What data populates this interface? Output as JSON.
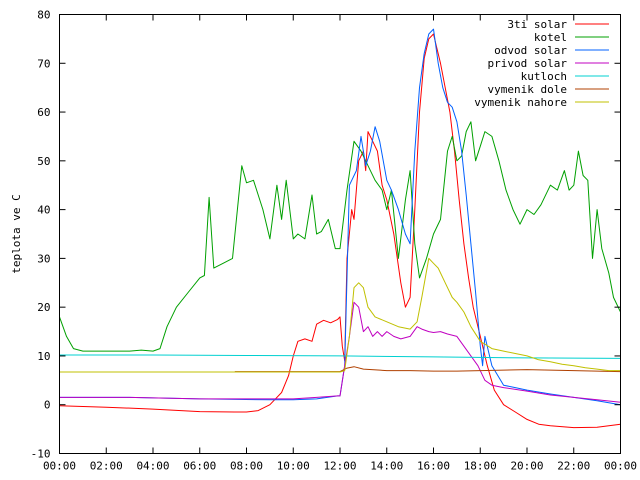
{
  "chart_data": {
    "type": "line",
    "xlabel": "",
    "ylabel": "teplota ve C",
    "xlim": [
      0,
      24
    ],
    "ylim": [
      -10,
      80
    ],
    "grid": false,
    "legend_position": "top-right",
    "x_tick_labels": [
      "00:00",
      "02:00",
      "04:00",
      "06:00",
      "08:00",
      "10:00",
      "12:00",
      "14:00",
      "16:00",
      "18:00",
      "20:00",
      "22:00",
      "00:00"
    ],
    "y_ticks": [
      -10,
      0,
      10,
      20,
      30,
      40,
      50,
      60,
      70,
      80
    ],
    "series": [
      {
        "name": "3ti solar",
        "color": "#ff0000",
        "points": [
          [
            0,
            -0.2
          ],
          [
            2,
            -0.5
          ],
          [
            4,
            -0.9
          ],
          [
            6,
            -1.4
          ],
          [
            7.5,
            -1.5
          ],
          [
            8,
            -1.5
          ],
          [
            8.5,
            -1.2
          ],
          [
            9,
            0
          ],
          [
            9.5,
            2.5
          ],
          [
            9.8,
            6
          ],
          [
            10,
            10
          ],
          [
            10.2,
            13
          ],
          [
            10.5,
            13.5
          ],
          [
            10.8,
            13
          ],
          [
            11,
            16.5
          ],
          [
            11.3,
            17.3
          ],
          [
            11.6,
            16.8
          ],
          [
            11.9,
            17.5
          ],
          [
            12,
            18
          ],
          [
            12.1,
            12
          ],
          [
            12.2,
            9
          ],
          [
            12.3,
            30
          ],
          [
            12.5,
            40
          ],
          [
            12.6,
            38
          ],
          [
            12.8,
            50
          ],
          [
            13,
            52
          ],
          [
            13.1,
            48
          ],
          [
            13.2,
            56
          ],
          [
            13.4,
            54
          ],
          [
            13.6,
            52
          ],
          [
            13.8,
            45
          ],
          [
            14,
            42
          ],
          [
            14.3,
            35
          ],
          [
            14.6,
            25
          ],
          [
            14.8,
            20
          ],
          [
            15,
            22
          ],
          [
            15.2,
            40
          ],
          [
            15.4,
            60
          ],
          [
            15.6,
            71
          ],
          [
            15.8,
            75
          ],
          [
            16,
            76
          ],
          [
            16.1,
            74
          ],
          [
            16.3,
            70
          ],
          [
            16.5,
            65
          ],
          [
            16.7,
            60
          ],
          [
            16.9,
            52
          ],
          [
            17.1,
            42
          ],
          [
            17.3,
            33
          ],
          [
            17.5,
            26
          ],
          [
            17.7,
            20
          ],
          [
            18,
            14
          ],
          [
            18.3,
            8
          ],
          [
            18.6,
            3
          ],
          [
            19,
            0
          ],
          [
            19.5,
            -1.5
          ],
          [
            20,
            -3
          ],
          [
            20.5,
            -4
          ],
          [
            21,
            -4.3
          ],
          [
            22,
            -4.7
          ],
          [
            23,
            -4.6
          ],
          [
            24,
            -4
          ]
        ]
      },
      {
        "name": "kotel",
        "color": "#00a000",
        "points": [
          [
            0,
            18
          ],
          [
            0.3,
            14
          ],
          [
            0.6,
            11.5
          ],
          [
            1,
            11
          ],
          [
            1.5,
            11
          ],
          [
            2,
            11
          ],
          [
            2.5,
            11
          ],
          [
            3,
            11
          ],
          [
            3.5,
            11.2
          ],
          [
            4,
            11
          ],
          [
            4.3,
            11.5
          ],
          [
            4.6,
            16
          ],
          [
            5,
            20
          ],
          [
            5.5,
            23
          ],
          [
            6,
            26
          ],
          [
            6.2,
            26.5
          ],
          [
            6.4,
            42.5
          ],
          [
            6.6,
            28
          ],
          [
            7,
            29
          ],
          [
            7.4,
            30
          ],
          [
            7.8,
            49
          ],
          [
            8,
            45.5
          ],
          [
            8.3,
            46
          ],
          [
            8.7,
            40
          ],
          [
            9,
            34
          ],
          [
            9.3,
            45
          ],
          [
            9.5,
            38
          ],
          [
            9.7,
            46
          ],
          [
            10,
            34
          ],
          [
            10.2,
            35
          ],
          [
            10.5,
            34
          ],
          [
            10.8,
            43
          ],
          [
            11,
            35
          ],
          [
            11.2,
            35.5
          ],
          [
            11.5,
            38
          ],
          [
            11.8,
            32
          ],
          [
            12,
            32
          ],
          [
            12.3,
            44
          ],
          [
            12.6,
            54
          ],
          [
            12.9,
            52
          ],
          [
            13.2,
            49
          ],
          [
            13.5,
            46
          ],
          [
            13.8,
            44
          ],
          [
            14,
            40
          ],
          [
            14.2,
            44
          ],
          [
            14.5,
            30
          ],
          [
            14.8,
            42
          ],
          [
            15,
            48
          ],
          [
            15.2,
            33
          ],
          [
            15.4,
            26
          ],
          [
            15.7,
            30
          ],
          [
            16,
            35
          ],
          [
            16.3,
            38
          ],
          [
            16.6,
            52
          ],
          [
            16.8,
            55
          ],
          [
            17,
            50
          ],
          [
            17.2,
            51
          ],
          [
            17.4,
            56
          ],
          [
            17.6,
            58
          ],
          [
            17.8,
            50
          ],
          [
            18,
            53
          ],
          [
            18.2,
            56
          ],
          [
            18.5,
            55
          ],
          [
            18.8,
            50
          ],
          [
            19.1,
            44
          ],
          [
            19.4,
            40
          ],
          [
            19.7,
            37
          ],
          [
            20,
            40
          ],
          [
            20.3,
            39
          ],
          [
            20.6,
            41
          ],
          [
            21,
            45
          ],
          [
            21.3,
            44
          ],
          [
            21.6,
            48
          ],
          [
            21.8,
            44
          ],
          [
            22,
            45
          ],
          [
            22.2,
            52
          ],
          [
            22.4,
            47
          ],
          [
            22.6,
            46
          ],
          [
            22.8,
            30
          ],
          [
            23,
            40
          ],
          [
            23.2,
            32
          ],
          [
            23.5,
            27
          ],
          [
            23.7,
            22
          ],
          [
            24,
            19
          ]
        ]
      },
      {
        "name": "odvod solar",
        "color": "#0060ff",
        "points": [
          [
            0,
            1.5
          ],
          [
            3,
            1.5
          ],
          [
            6,
            1.2
          ],
          [
            9,
            1
          ],
          [
            10,
            1
          ],
          [
            11,
            1.2
          ],
          [
            11.9,
            1.8
          ],
          [
            12,
            1.8
          ],
          [
            12.2,
            8
          ],
          [
            12.4,
            45
          ],
          [
            12.7,
            48
          ],
          [
            12.9,
            55
          ],
          [
            13.1,
            49
          ],
          [
            13.3,
            52
          ],
          [
            13.5,
            57
          ],
          [
            13.7,
            54
          ],
          [
            14,
            46
          ],
          [
            14.2,
            44
          ],
          [
            14.5,
            40
          ],
          [
            14.8,
            35
          ],
          [
            15,
            33
          ],
          [
            15.2,
            52
          ],
          [
            15.4,
            65
          ],
          [
            15.6,
            72
          ],
          [
            15.8,
            76
          ],
          [
            16,
            77
          ],
          [
            16.2,
            70
          ],
          [
            16.4,
            65
          ],
          [
            16.6,
            62
          ],
          [
            16.8,
            61
          ],
          [
            17,
            58
          ],
          [
            17.2,
            52
          ],
          [
            17.4,
            43
          ],
          [
            17.6,
            33
          ],
          [
            17.8,
            23
          ],
          [
            18,
            12
          ],
          [
            18.1,
            8
          ],
          [
            18.2,
            14
          ],
          [
            18.5,
            8
          ],
          [
            19,
            4
          ],
          [
            19.5,
            3.5
          ],
          [
            20,
            3
          ],
          [
            21,
            2.2
          ],
          [
            22,
            1.5
          ],
          [
            23,
            0.8
          ],
          [
            24,
            0
          ]
        ]
      },
      {
        "name": "privod solar",
        "color": "#c000c0",
        "points": [
          [
            0,
            1.5
          ],
          [
            3,
            1.5
          ],
          [
            6,
            1.2
          ],
          [
            9,
            1.2
          ],
          [
            10,
            1.2
          ],
          [
            11,
            1.5
          ],
          [
            11.9,
            1.8
          ],
          [
            12,
            1.8
          ],
          [
            12.2,
            8
          ],
          [
            12.4,
            14
          ],
          [
            12.6,
            21
          ],
          [
            12.8,
            20
          ],
          [
            13,
            15
          ],
          [
            13.2,
            16
          ],
          [
            13.4,
            14
          ],
          [
            13.6,
            15
          ],
          [
            13.8,
            14
          ],
          [
            14,
            15
          ],
          [
            14.3,
            14
          ],
          [
            14.6,
            13.5
          ],
          [
            15,
            14
          ],
          [
            15.3,
            16
          ],
          [
            15.5,
            15.5
          ],
          [
            15.8,
            15
          ],
          [
            16,
            14.8
          ],
          [
            16.3,
            15
          ],
          [
            16.6,
            14.5
          ],
          [
            17,
            14
          ],
          [
            17.3,
            12
          ],
          [
            17.6,
            10
          ],
          [
            17.9,
            8
          ],
          [
            18.2,
            5
          ],
          [
            18.5,
            4
          ],
          [
            19,
            3.5
          ],
          [
            20,
            2.8
          ],
          [
            21,
            2
          ],
          [
            22,
            1.5
          ],
          [
            23,
            1
          ],
          [
            24,
            0.5
          ]
        ]
      },
      {
        "name": "kutloch",
        "color": "#00d0d0",
        "points": [
          [
            0,
            10.2
          ],
          [
            4,
            10.2
          ],
          [
            8,
            10.1
          ],
          [
            12,
            10
          ],
          [
            16,
            9.8
          ],
          [
            20,
            9.6
          ],
          [
            24,
            9.5
          ]
        ]
      },
      {
        "name": "vymenik dole",
        "color": "#b04000",
        "points": [
          [
            7.5,
            6.8
          ],
          [
            9,
            6.8
          ],
          [
            10,
            6.8
          ],
          [
            11,
            6.8
          ],
          [
            12,
            6.8
          ],
          [
            12.3,
            7.5
          ],
          [
            12.6,
            7.8
          ],
          [
            13,
            7.3
          ],
          [
            14,
            7
          ],
          [
            15,
            7
          ],
          [
            16,
            6.9
          ],
          [
            17,
            6.9
          ],
          [
            18,
            7
          ],
          [
            19,
            7.1
          ],
          [
            20,
            7.2
          ],
          [
            21,
            7.1
          ],
          [
            22,
            7
          ],
          [
            23,
            6.9
          ],
          [
            24,
            6.8
          ]
        ]
      },
      {
        "name": "vymenik nahore",
        "color": "#c0c000",
        "points": [
          [
            0,
            6.7
          ],
          [
            4,
            6.7
          ],
          [
            8,
            6.7
          ],
          [
            12,
            6.7
          ],
          [
            12.2,
            7
          ],
          [
            12.4,
            14
          ],
          [
            12.6,
            24
          ],
          [
            12.8,
            25
          ],
          [
            13,
            24
          ],
          [
            13.2,
            20
          ],
          [
            13.5,
            18
          ],
          [
            14,
            17
          ],
          [
            14.5,
            16
          ],
          [
            15,
            15.5
          ],
          [
            15.3,
            17
          ],
          [
            15.5,
            22
          ],
          [
            15.8,
            30
          ],
          [
            16,
            29
          ],
          [
            16.2,
            28
          ],
          [
            16.5,
            25
          ],
          [
            16.8,
            22
          ],
          [
            17,
            21
          ],
          [
            17.3,
            19
          ],
          [
            17.6,
            16
          ],
          [
            18,
            13
          ],
          [
            18.5,
            11.5
          ],
          [
            19,
            11
          ],
          [
            19.5,
            10.5
          ],
          [
            20,
            10
          ],
          [
            20.5,
            9.2
          ],
          [
            21,
            8.8
          ],
          [
            21.5,
            8.3
          ],
          [
            22,
            8
          ],
          [
            22.5,
            7.6
          ],
          [
            23,
            7.3
          ],
          [
            23.5,
            7
          ],
          [
            24,
            7
          ]
        ]
      }
    ]
  }
}
